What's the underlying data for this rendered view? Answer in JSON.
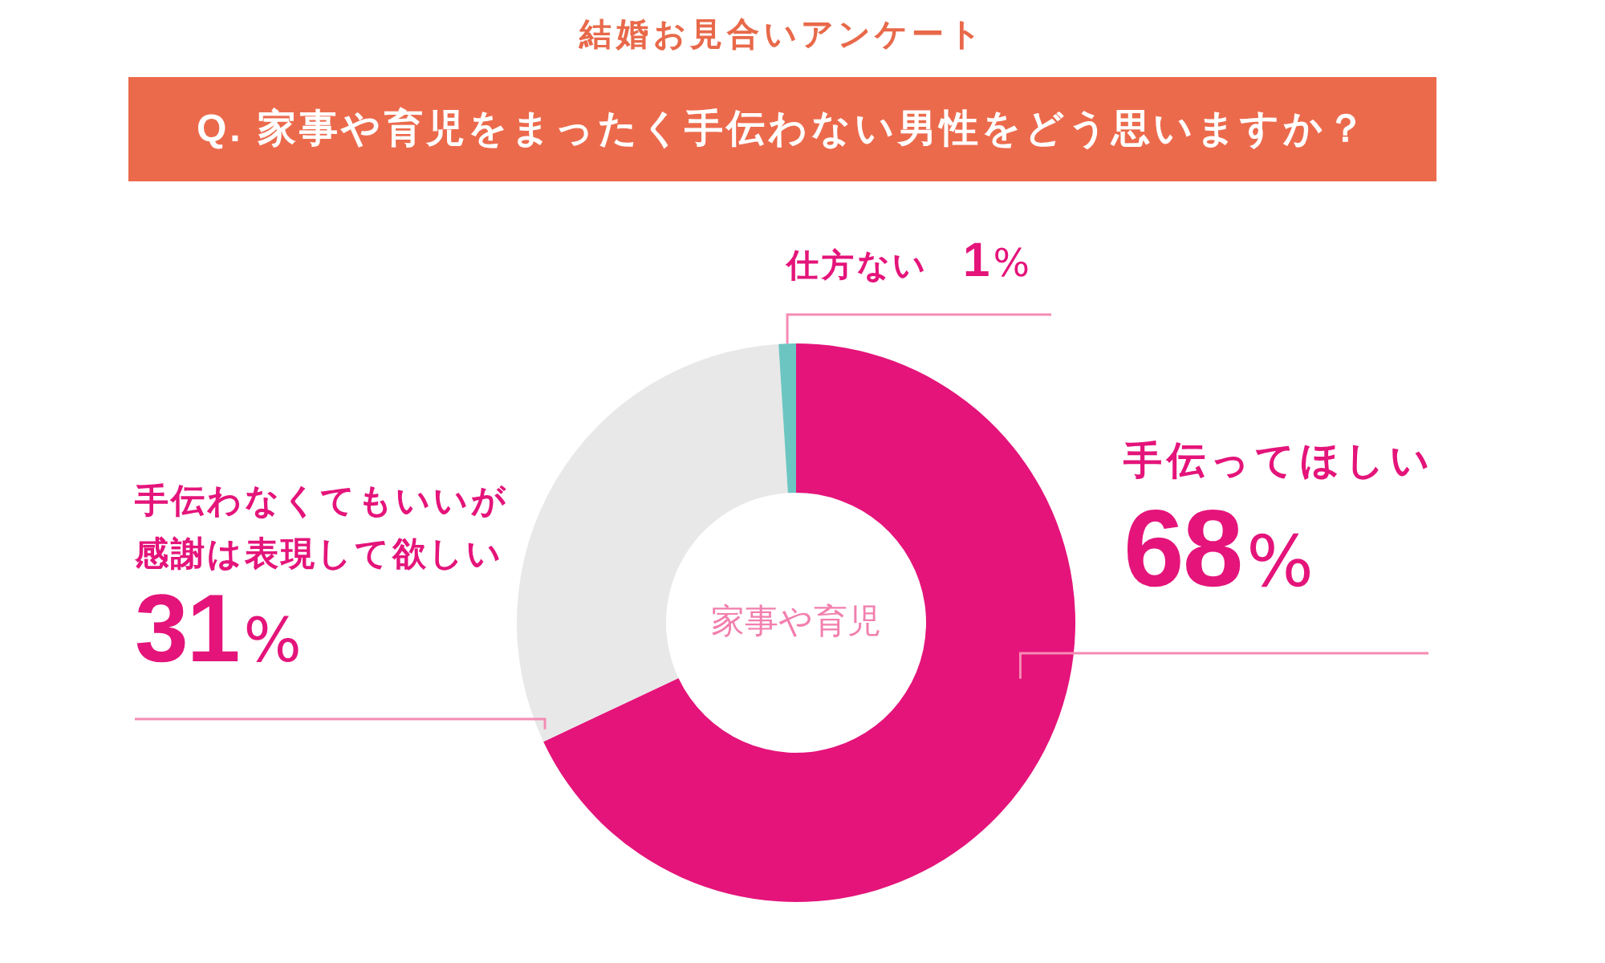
{
  "chart_data": {
    "type": "donut",
    "subtitle": "結婚お見合いアンケート",
    "title": "Q. 家事や育児をまったく手伝わない男性をどう思いますか？",
    "categories": [
      "手伝ってほしい",
      "手伝わなくてもいいが感謝は表現して欲しい",
      "仕方ない"
    ],
    "values": [
      68,
      31,
      1
    ],
    "colors": [
      "#e4147a",
      "#e8e8e8",
      "#6cc5c1"
    ],
    "value_labels": [
      "68%",
      "31%",
      "1%"
    ],
    "annotations": [
      "家事や育児"
    ]
  }
}
